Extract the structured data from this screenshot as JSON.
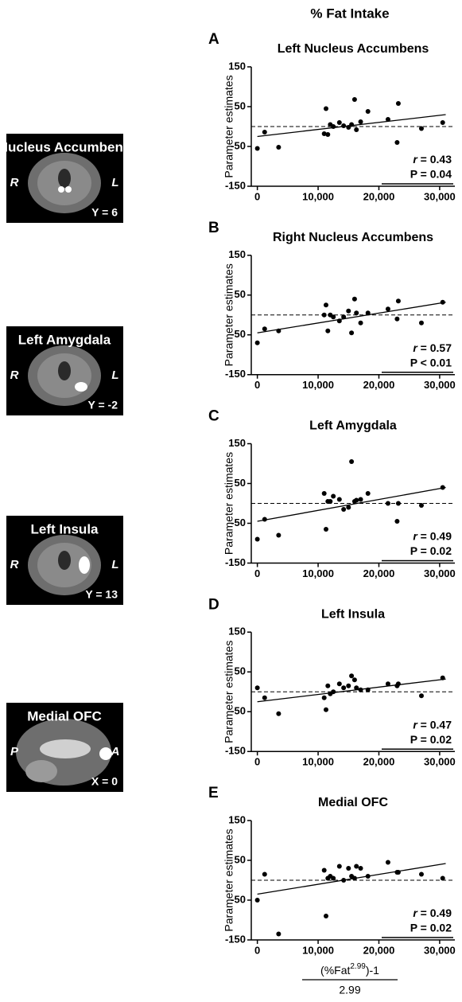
{
  "header": "% Fat Intake",
  "x_axis_label": {
    "numerator": [
      "(%Fat",
      "2.99",
      ")-1"
    ],
    "denominator": "2.99"
  },
  "brain_panels": [
    {
      "title": "Nucleus Accumbens",
      "left": "R",
      "right": "L",
      "coord": "Y = 6"
    },
    {
      "title": "Left Amygdala",
      "left": "R",
      "right": "L",
      "coord": "Y = -2"
    },
    {
      "title": "Left Insula",
      "left": "R",
      "right": "L",
      "coord": "Y = 13"
    },
    {
      "title": "Medial OFC",
      "left": "P",
      "right": "A",
      "coord": "X = 0"
    }
  ],
  "chart_data": [
    {
      "type": "scatter",
      "panel_letter": "A",
      "title": "Left Nucleus Accumbens",
      "ylabel": "Parameter estimates",
      "color": "#000000",
      "x": [
        0,
        1200,
        3500,
        11000,
        11300,
        11600,
        12000,
        12500,
        13500,
        14200,
        15000,
        15500,
        16000,
        16300,
        17000,
        18200,
        21500,
        23000,
        23200,
        27000,
        30500
      ],
      "values": [
        -55,
        -14,
        -52,
        -18,
        45,
        -20,
        5,
        0,
        10,
        2,
        -2,
        5,
        68,
        -8,
        12,
        38,
        18,
        -40,
        58,
        -5,
        10
      ],
      "fit": {
        "x": [
          0,
          31000
        ],
        "values": [
          -25,
          30
        ]
      },
      "reference_line": 0,
      "xlim": [
        -1000,
        32500
      ],
      "ylim": [
        -150,
        150
      ],
      "xticks": [
        0,
        {
          "value": 10000,
          "label": "10,000"
        },
        {
          "value": 20000,
          "label": "20,000"
        },
        {
          "value": 30000,
          "label": "30,000"
        }
      ],
      "yticks": [
        -150,
        -50,
        50,
        150
      ],
      "r_symbol": "r",
      "r_text": " = 0.43",
      "p_text": "P = 0.04"
    },
    {
      "type": "scatter",
      "panel_letter": "B",
      "title": "Right Nucleus Accumbens",
      "ylabel": "Parameter estimates",
      "color": "#000000",
      "x": [
        0,
        1200,
        3500,
        11000,
        11300,
        11600,
        12000,
        12500,
        13500,
        14200,
        15000,
        15500,
        16000,
        16300,
        17000,
        18200,
        21500,
        23000,
        23200,
        27000,
        30500
      ],
      "values": [
        -70,
        -35,
        -40,
        0,
        25,
        -40,
        0,
        -5,
        -15,
        -5,
        10,
        -45,
        40,
        5,
        -20,
        5,
        15,
        -10,
        35,
        -20,
        32
      ],
      "fit": {
        "x": [
          0,
          31000
        ],
        "values": [
          -45,
          32
        ]
      },
      "reference_line": 0,
      "xlim": [
        -1000,
        32500
      ],
      "ylim": [
        -150,
        150
      ],
      "xticks": [
        0,
        {
          "value": 10000,
          "label": "10,000"
        },
        {
          "value": 20000,
          "label": "20,000"
        },
        {
          "value": 30000,
          "label": "30,000"
        }
      ],
      "yticks": [
        -150,
        -50,
        50,
        150
      ],
      "r_symbol": "r",
      "r_text": " = 0.57",
      "p_text": "P < 0.01"
    },
    {
      "type": "scatter",
      "panel_letter": "C",
      "title": "Left Amygdala",
      "ylabel": "Parameter estimates",
      "color": "#000000",
      "x": [
        0,
        1200,
        3500,
        11000,
        11300,
        11600,
        12000,
        12500,
        13500,
        14200,
        15000,
        15500,
        16000,
        16300,
        17000,
        18200,
        21500,
        23000,
        23200,
        27000,
        30500
      ],
      "values": [
        -90,
        -40,
        -80,
        25,
        -65,
        5,
        5,
        18,
        10,
        -15,
        -10,
        105,
        5,
        8,
        10,
        25,
        0,
        -45,
        0,
        -5,
        40
      ],
      "fit": {
        "x": [
          0,
          31000
        ],
        "values": [
          -45,
          40
        ]
      },
      "reference_line": 0,
      "xlim": [
        -1000,
        32500
      ],
      "ylim": [
        -150,
        150
      ],
      "xticks": [
        0,
        {
          "value": 10000,
          "label": "10,000"
        },
        {
          "value": 20000,
          "label": "20,000"
        },
        {
          "value": 30000,
          "label": "30,000"
        }
      ],
      "yticks": [
        -150,
        -50,
        50,
        150
      ],
      "r_symbol": "r",
      "r_text": " = 0.49",
      "p_text": "P = 0.02"
    },
    {
      "type": "scatter",
      "panel_letter": "D",
      "title": "Left Insula",
      "ylabel": "Parameter estimates",
      "color": "#000000",
      "x": [
        0,
        1200,
        3500,
        11000,
        11300,
        11600,
        12000,
        12500,
        13500,
        14200,
        15000,
        15500,
        16000,
        16300,
        17000,
        18200,
        21500,
        23000,
        23200,
        27000,
        30500
      ],
      "values": [
        10,
        -15,
        -55,
        -15,
        -45,
        15,
        -5,
        0,
        20,
        10,
        15,
        40,
        30,
        10,
        5,
        5,
        20,
        15,
        20,
        -10,
        35
      ],
      "fit": {
        "x": [
          0,
          31000
        ],
        "values": [
          -25,
          32
        ]
      },
      "reference_line": 0,
      "xlim": [
        -1000,
        32500
      ],
      "ylim": [
        -150,
        150
      ],
      "xticks": [
        0,
        {
          "value": 10000,
          "label": "10,000"
        },
        {
          "value": 20000,
          "label": "20,000"
        },
        {
          "value": 30000,
          "label": "30,000"
        }
      ],
      "yticks": [
        -150,
        -50,
        50,
        150
      ],
      "r_symbol": "r",
      "r_text": " = 0.47",
      "p_text": "P = 0.02"
    },
    {
      "type": "scatter",
      "panel_letter": "E",
      "title": "Medial OFC",
      "ylabel": "Parameter estimates",
      "color": "#000000",
      "x": [
        0,
        1200,
        3500,
        11000,
        11300,
        11600,
        12000,
        12500,
        13500,
        14200,
        15000,
        15500,
        16000,
        16300,
        17000,
        18200,
        21500,
        23000,
        23200,
        27000,
        30500
      ],
      "values": [
        -50,
        15,
        -135,
        25,
        -90,
        5,
        10,
        5,
        35,
        0,
        30,
        10,
        5,
        35,
        30,
        10,
        45,
        20,
        20,
        15,
        5
      ],
      "fit": {
        "x": [
          0,
          31000
        ],
        "values": [
          -35,
          42
        ]
      },
      "reference_line": 0,
      "xlim": [
        -1000,
        32500
      ],
      "ylim": [
        -150,
        150
      ],
      "xticks": [
        0,
        {
          "value": 10000,
          "label": "10,000"
        },
        {
          "value": 20000,
          "label": "20,000"
        },
        {
          "value": 30000,
          "label": "30,000"
        }
      ],
      "yticks": [
        -150,
        -50,
        50,
        150
      ],
      "r_symbol": "r",
      "r_text": " = 0.49",
      "p_text": "P = 0.02"
    }
  ]
}
